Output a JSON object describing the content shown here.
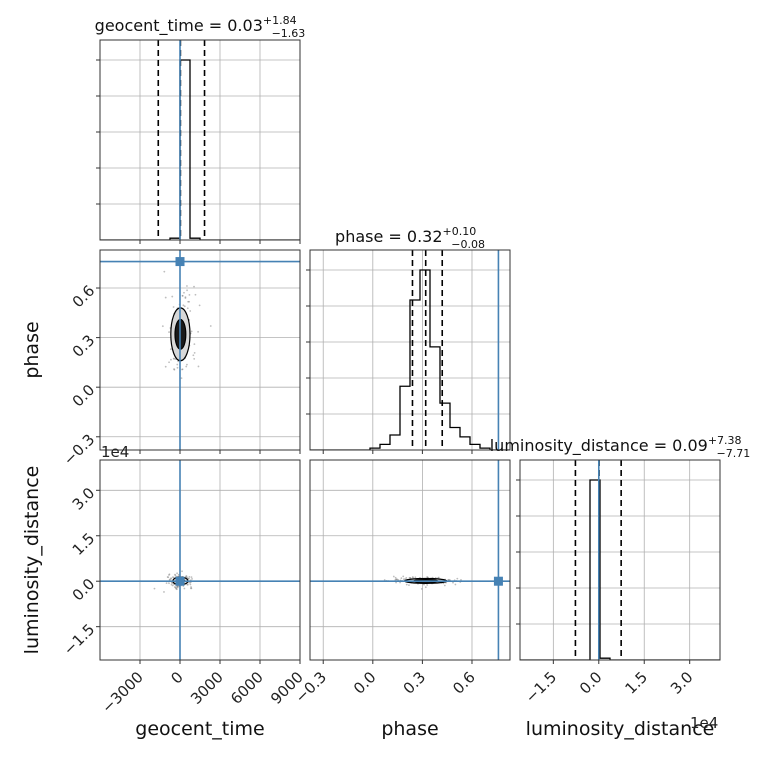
{
  "chart_data": {
    "type": "corner",
    "params": [
      "geocent_time",
      "phase",
      "luminosity_distance"
    ],
    "axis_labels": {
      "geocent_time": "geocent_time",
      "phase": "phase",
      "luminosity_distance": "luminosity_distance"
    },
    "titles": {
      "geocent_time": {
        "name": "geocent_time",
        "median": "0.03",
        "plus": "+1.84",
        "minus": "−1.63"
      },
      "phase": {
        "name": "phase",
        "median": "0.32",
        "plus": "+0.10",
        "minus": "−0.08"
      },
      "luminosity_distance": {
        "name": "luminosity_distance",
        "median": "0.09",
        "plus": "+7.38",
        "minus": "−7.71"
      }
    },
    "ranges": {
      "geocent_time": [
        -6000,
        9000
      ],
      "phase": [
        -0.38,
        0.83
      ],
      "luminosity_distance": [
        -26000,
        40000
      ]
    },
    "ticks": {
      "geocent_time": {
        "values": [
          -3000,
          0,
          3000,
          6000,
          9000
        ],
        "labels": [
          "−3000",
          "0",
          "3000",
          "6000",
          "9000"
        ]
      },
      "phase": {
        "values": [
          -0.3,
          0.0,
          0.3,
          0.6
        ],
        "labels": [
          "−0.3",
          "0.0",
          "0.3",
          "0.6"
        ]
      },
      "luminosity_distance": {
        "values": [
          -15000,
          0,
          15000,
          30000
        ],
        "labels": [
          "−1.5",
          "0.0",
          "1.5",
          "3.0"
        ]
      }
    },
    "offset_text": {
      "luminosity_distance": "1e4"
    },
    "truths": {
      "geocent_time": 0,
      "phase": 0.76,
      "luminosity_distance": 0
    },
    "truth_color": "#4682b4",
    "line_color": "#000000",
    "grid": true,
    "histograms": {
      "geocent_time": {
        "edges": [
          -6000,
          -5250,
          -4500,
          -3750,
          -3000,
          -2250,
          -1500,
          -750,
          0,
          750,
          1500,
          2250,
          3000,
          3750,
          4500,
          5250,
          6000,
          6750,
          7500,
          8250,
          9000
        ],
        "counts": [
          0,
          0,
          0,
          0,
          0,
          0,
          0,
          0.01,
          1.0,
          0.01,
          0,
          0,
          0,
          0,
          0,
          0,
          0,
          0,
          0,
          0
        ],
        "quantiles": [
          -1630,
          30,
          1840
        ]
      },
      "phase": {
        "edges": [
          -0.38,
          -0.3195,
          -0.259,
          -0.1985,
          -0.138,
          -0.0775,
          -0.017,
          0.0435,
          0.104,
          0.1645,
          0.225,
          0.2855,
          0.346,
          0.4065,
          0.467,
          0.5275,
          0.588,
          0.6485,
          0.709,
          0.7695,
          0.83
        ],
        "counts": [
          0,
          0,
          0,
          0,
          0,
          0,
          0.01,
          0.03,
          0.08,
          0.34,
          0.8,
          0.96,
          0.55,
          0.25,
          0.12,
          0.07,
          0.03,
          0.01,
          0,
          0
        ],
        "quantiles": [
          0.24,
          0.32,
          0.42
        ]
      },
      "luminosity_distance": {
        "edges": [
          -26000,
          -22700,
          -19400,
          -16100,
          -12800,
          -9500,
          -6200,
          -2900,
          400,
          3700,
          7000,
          10300,
          13600,
          16900,
          20200,
          23500,
          26800,
          30100,
          33400,
          36700,
          40000
        ],
        "counts": [
          0,
          0,
          0,
          0,
          0,
          0,
          0,
          1.0,
          0.01,
          0,
          0,
          0,
          0,
          0,
          0,
          0,
          0,
          0,
          0,
          0
        ],
        "quantiles": [
          -7710,
          90,
          7380
        ]
      }
    },
    "joint": {
      "phase_vs_geocent_time": {
        "center": [
          30,
          0.32
        ],
        "spread": [
          450,
          0.1
        ]
      },
      "luminosity_distance_vs_geocent_time": {
        "center": [
          30,
          90
        ],
        "spread": [
          350,
          800
        ]
      },
      "luminosity_distance_vs_phase": {
        "center": [
          0.32,
          90
        ],
        "spread": [
          0.08,
          500
        ]
      }
    }
  }
}
